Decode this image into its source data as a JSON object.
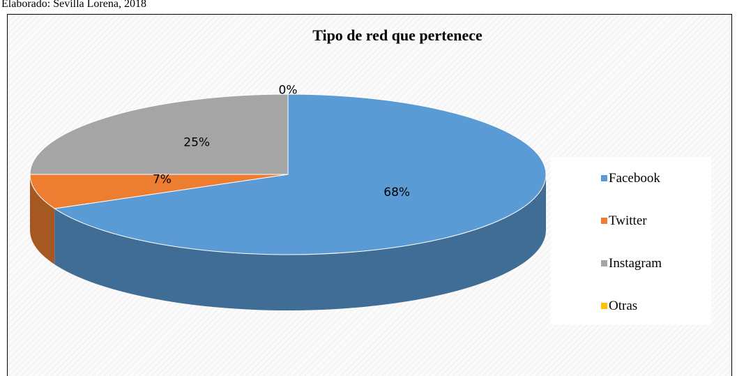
{
  "source": "Elaborado: Sevilla Lorena, 2018",
  "chart_data": {
    "type": "pie",
    "title": "Tipo de red que pertenece",
    "categories": [
      "Facebook",
      "Twitter",
      "Instagram",
      "Otras"
    ],
    "values": [
      68,
      7,
      25,
      0
    ],
    "value_labels": [
      "68%",
      "7%",
      "25%",
      "0%"
    ],
    "colors": [
      "#5b9bd5",
      "#ed7d31",
      "#a5a5a5",
      "#ffc000"
    ],
    "legend": "right"
  }
}
